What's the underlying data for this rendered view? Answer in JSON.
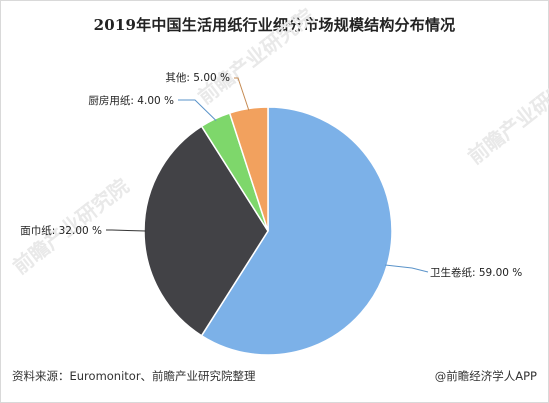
{
  "title": "2019年中国生活用纸行业细分市场规模结构分布情况",
  "chart_data": {
    "type": "pie",
    "title": "2019年中国生活用纸行业细分市场规模结构分布情况",
    "slices": [
      {
        "label": "卫生卷纸",
        "value": 59.0,
        "color": "#7cb1e8"
      },
      {
        "label": "面巾纸",
        "value": 32.0,
        "color": "#424246"
      },
      {
        "label": "厨房用纸",
        "value": 4.0,
        "color": "#7ed76b"
      },
      {
        "label": "其他",
        "value": 5.0,
        "color": "#f2a15e"
      }
    ],
    "label_suffix": " %",
    "leader_line_color": "#5a93c9"
  },
  "footer": {
    "source": "资料来源：Euromonitor、前瞻产业研究院整理",
    "brand": "@前瞻经济学人APP"
  },
  "watermark": {
    "text": "前瞻产业研究院"
  }
}
